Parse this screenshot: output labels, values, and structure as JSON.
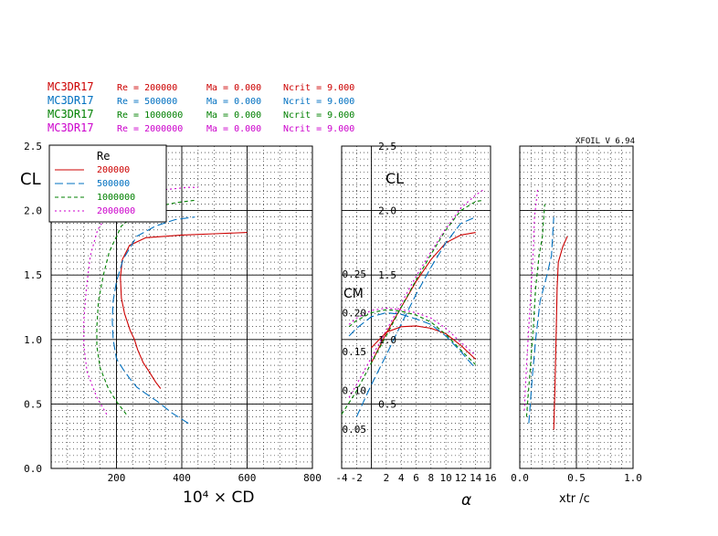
{
  "header": {
    "version": "XFOIL V 6.94",
    "rows": [
      {
        "airfoil": "MC3DR17",
        "re": "Re = 200000",
        "ma": "Ma = 0.000",
        "ncrit": "Ncrit = 9.000",
        "color": "#cc0000"
      },
      {
        "airfoil": "MC3DR17",
        "re": "Re = 500000",
        "ma": "Ma = 0.000",
        "ncrit": "Ncrit = 9.000",
        "color": "#0070c0"
      },
      {
        "airfoil": "MC3DR17",
        "re": "Re = 1000000",
        "ma": "Ma = 0.000",
        "ncrit": "Ncrit = 9.000",
        "color": "#008000"
      },
      {
        "airfoil": "MC3DR17",
        "re": "Re = 2000000",
        "ma": "Ma = 0.000",
        "ncrit": "Ncrit = 9.000",
        "color": "#cc00cc"
      }
    ]
  },
  "chart_data": [
    {
      "type": "line",
      "id": "drag-polar",
      "xlabel": "10⁴ × CD",
      "ylabel": "CL",
      "xlim": [
        0,
        800
      ],
      "ylim": [
        0,
        2.5
      ],
      "xticks": [
        "200",
        "400",
        "600",
        "800"
      ],
      "yticks": [
        "0.0",
        "0.5",
        "1.0",
        "1.5",
        "2.0",
        "2.5"
      ],
      "grid": true,
      "legend": {
        "title": "Re",
        "position": "top-left",
        "entries": [
          "200000",
          "500000",
          "1000000",
          "2000000"
        ]
      },
      "series": [
        {
          "name": "200000",
          "color": "#cc0000",
          "dash": "",
          "points": [
            [
              335,
              0.62
            ],
            [
              320,
              0.67
            ],
            [
              300,
              0.75
            ],
            [
              282,
              0.82
            ],
            [
              265,
              0.92
            ],
            [
              255,
              1.0
            ],
            [
              242,
              1.07
            ],
            [
              225,
              1.2
            ],
            [
              215,
              1.32
            ],
            [
              212,
              1.48
            ],
            [
              218,
              1.62
            ],
            [
              240,
              1.73
            ],
            [
              290,
              1.79
            ],
            [
              400,
              1.81
            ],
            [
              500,
              1.82
            ],
            [
              600,
              1.83
            ]
          ]
        },
        {
          "name": "500000",
          "color": "#0070c0",
          "dash": "9,4",
          "points": [
            [
              420,
              0.35
            ],
            [
              370,
              0.43
            ],
            [
              325,
              0.52
            ],
            [
              290,
              0.58
            ],
            [
              262,
              0.63
            ],
            [
              240,
              0.7
            ],
            [
              220,
              0.77
            ],
            [
              200,
              0.85
            ],
            [
              190,
              1.0
            ],
            [
              187,
              1.15
            ],
            [
              190,
              1.3
            ],
            [
              200,
              1.45
            ],
            [
              220,
              1.62
            ],
            [
              262,
              1.8
            ],
            [
              320,
              1.88
            ],
            [
              380,
              1.93
            ],
            [
              440,
              1.95
            ]
          ]
        },
        {
          "name": "1000000",
          "color": "#008000",
          "dash": "4,3",
          "points": [
            [
              230,
              0.42
            ],
            [
              200,
              0.52
            ],
            [
              175,
              0.62
            ],
            [
              150,
              0.78
            ],
            [
              140,
              0.95
            ],
            [
              140,
              1.1
            ],
            [
              145,
              1.3
            ],
            [
              160,
              1.5
            ],
            [
              178,
              1.68
            ],
            [
              215,
              1.88
            ],
            [
              260,
              1.97
            ],
            [
              320,
              2.03
            ],
            [
              380,
              2.06
            ],
            [
              440,
              2.08
            ]
          ]
        },
        {
          "name": "2000000",
          "color": "#cc00cc",
          "dash": "2,3",
          "points": [
            [
              170,
              0.42
            ],
            [
              140,
              0.55
            ],
            [
              110,
              0.75
            ],
            [
              100,
              0.95
            ],
            [
              100,
              1.15
            ],
            [
              108,
              1.4
            ],
            [
              120,
              1.65
            ],
            [
              142,
              1.85
            ],
            [
              185,
              2.02
            ],
            [
              260,
              2.12
            ],
            [
              340,
              2.16
            ],
            [
              420,
              2.18
            ],
            [
              450,
              2.18
            ]
          ]
        }
      ]
    },
    {
      "type": "line",
      "id": "lift-and-moment-vs-alpha",
      "xlabel": "α",
      "ylabel": "CL",
      "ylabel2": "CM",
      "xlim": [
        -4,
        16
      ],
      "ylim": [
        0,
        2.5
      ],
      "y2lim": [
        0.05,
        0.25
      ],
      "xticks": [
        "-4",
        "-2",
        "2",
        "4",
        "6",
        "8",
        "10",
        "12",
        "14",
        "16"
      ],
      "yticks": [
        "0.5",
        "1.0",
        "1.5",
        "2.0",
        "2.5"
      ],
      "y2ticks": [
        "0.05",
        "0.10",
        "0.15",
        "0.20",
        "0.25"
      ],
      "grid": true,
      "series": [
        {
          "name": "200000",
          "color": "#cc0000",
          "dash": "",
          "axis": "CL",
          "points": [
            [
              0,
              0.82
            ],
            [
              2,
              1.05
            ],
            [
              4,
              1.25
            ],
            [
              6,
              1.45
            ],
            [
              8,
              1.62
            ],
            [
              10,
              1.75
            ],
            [
              12,
              1.81
            ],
            [
              14,
              1.83
            ]
          ]
        },
        {
          "name": "500000",
          "color": "#0070c0",
          "dash": "9,4",
          "axis": "CL",
          "points": [
            [
              -2,
              0.4
            ],
            [
              0,
              0.65
            ],
            [
              2,
              0.88
            ],
            [
              4,
              1.12
            ],
            [
              6,
              1.35
            ],
            [
              8,
              1.56
            ],
            [
              10,
              1.75
            ],
            [
              12,
              1.9
            ],
            [
              14,
              1.95
            ]
          ]
        },
        {
          "name": "1000000",
          "color": "#008000",
          "dash": "4,3",
          "axis": "CL",
          "points": [
            [
              -4,
              0.42
            ],
            [
              -2,
              0.6
            ],
            [
              0,
              0.82
            ],
            [
              2,
              1.03
            ],
            [
              4,
              1.25
            ],
            [
              6,
              1.46
            ],
            [
              8,
              1.66
            ],
            [
              10,
              1.85
            ],
            [
              12,
              2.0
            ],
            [
              14,
              2.07
            ],
            [
              15,
              2.08
            ]
          ]
        },
        {
          "name": "2000000",
          "color": "#cc00cc",
          "dash": "2,3",
          "axis": "CL",
          "points": [
            [
              -3,
              0.55
            ],
            [
              -2,
              0.65
            ],
            [
              0,
              0.86
            ],
            [
              2,
              1.07
            ],
            [
              4,
              1.28
            ],
            [
              6,
              1.49
            ],
            [
              8,
              1.68
            ],
            [
              10,
              1.86
            ],
            [
              12,
              2.02
            ],
            [
              14,
              2.12
            ],
            [
              15,
              2.16
            ]
          ]
        },
        {
          "name": "200000",
          "color": "#cc0000",
          "dash": "",
          "axis": "CM",
          "points": [
            [
              0,
              0.155
            ],
            [
              2,
              0.175
            ],
            [
              4,
              0.182
            ],
            [
              6,
              0.183
            ],
            [
              8,
              0.18
            ],
            [
              10,
              0.173
            ],
            [
              12,
              0.158
            ],
            [
              14,
              0.14
            ]
          ]
        },
        {
          "name": "500000",
          "color": "#0070c0",
          "dash": "9,4",
          "axis": "CM",
          "points": [
            [
              -3,
              0.17
            ],
            [
              -2,
              0.18
            ],
            [
              0,
              0.195
            ],
            [
              2,
              0.2
            ],
            [
              4,
              0.198
            ],
            [
              6,
              0.192
            ],
            [
              8,
              0.185
            ],
            [
              10,
              0.17
            ],
            [
              12,
              0.15
            ],
            [
              14,
              0.128
            ]
          ]
        },
        {
          "name": "1000000",
          "color": "#008000",
          "dash": "4,3",
          "axis": "CM",
          "points": [
            [
              -3,
              0.182
            ],
            [
              -2,
              0.19
            ],
            [
              0,
              0.2
            ],
            [
              2,
              0.204
            ],
            [
              4,
              0.202
            ],
            [
              6,
              0.197
            ],
            [
              8,
              0.188
            ],
            [
              10,
              0.172
            ],
            [
              12,
              0.152
            ],
            [
              14,
              0.133
            ]
          ]
        },
        {
          "name": "2000000",
          "color": "#cc00cc",
          "dash": "2,3",
          "axis": "CM",
          "points": [
            [
              -3,
              0.185
            ],
            [
              -2,
              0.193
            ],
            [
              0,
              0.203
            ],
            [
              2,
              0.206
            ],
            [
              4,
              0.204
            ],
            [
              6,
              0.2
            ],
            [
              8,
              0.193
            ],
            [
              10,
              0.18
            ],
            [
              12,
              0.162
            ],
            [
              14,
              0.145
            ]
          ]
        }
      ]
    },
    {
      "type": "line",
      "id": "transition-location",
      "xlabel": "xtr /c",
      "ylabel": "",
      "xlim": [
        0,
        1.0
      ],
      "ylim": [
        0,
        2.5
      ],
      "xticks": [
        "0.0",
        "0.5",
        "1.0"
      ],
      "grid": true,
      "series": [
        {
          "name": "200000",
          "color": "#cc0000",
          "dash": "",
          "points": [
            [
              0.3,
              0.3
            ],
            [
              0.31,
              0.6
            ],
            [
              0.32,
              1.0
            ],
            [
              0.33,
              1.4
            ],
            [
              0.34,
              1.6
            ],
            [
              0.38,
              1.72
            ],
            [
              0.42,
              1.8
            ]
          ]
        },
        {
          "name": "500000",
          "color": "#0070c0",
          "dash": "9,4",
          "points": [
            [
              0.08,
              0.35
            ],
            [
              0.11,
              0.7
            ],
            [
              0.14,
              1.0
            ],
            [
              0.18,
              1.3
            ],
            [
              0.24,
              1.5
            ],
            [
              0.28,
              1.65
            ],
            [
              0.3,
              1.95
            ]
          ]
        },
        {
          "name": "1000000",
          "color": "#008000",
          "dash": "4,3",
          "points": [
            [
              0.06,
              0.4
            ],
            [
              0.09,
              0.75
            ],
            [
              0.12,
              1.1
            ],
            [
              0.14,
              1.4
            ],
            [
              0.17,
              1.65
            ],
            [
              0.2,
              1.8
            ],
            [
              0.22,
              2.05
            ]
          ]
        },
        {
          "name": "2000000",
          "color": "#cc00cc",
          "dash": "2,3",
          "points": [
            [
              0.04,
              0.45
            ],
            [
              0.06,
              0.8
            ],
            [
              0.08,
              1.1
            ],
            [
              0.1,
              1.4
            ],
            [
              0.12,
              1.7
            ],
            [
              0.13,
              1.95
            ],
            [
              0.16,
              2.18
            ]
          ]
        }
      ]
    }
  ]
}
